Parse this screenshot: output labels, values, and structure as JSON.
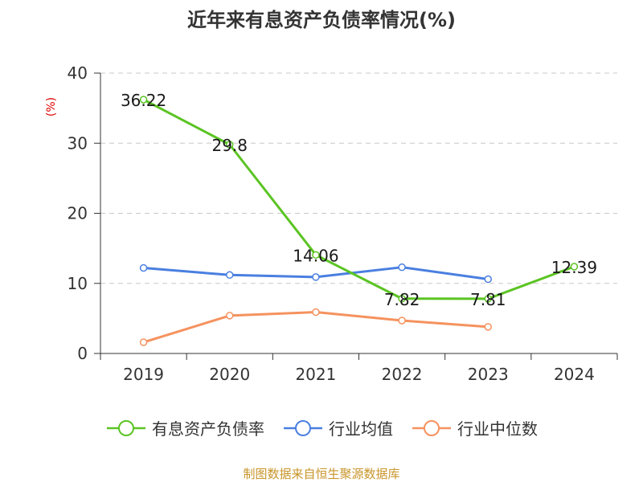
{
  "title": "近年来有息资产负债率情况(%)",
  "unit_label": "(%)",
  "source": "制图数据来自恒生聚源数据库",
  "chart_data": {
    "type": "line",
    "title": "近年来有息资产负债率情况(%)",
    "ylabel": "(%)",
    "xlabel": "",
    "categories": [
      "2019",
      "2020",
      "2021",
      "2022",
      "2023",
      "2024"
    ],
    "ylim": [
      0,
      40
    ],
    "yticks": [
      0,
      10,
      20,
      30,
      40
    ],
    "grid": true,
    "legend_position": "bottom",
    "series": [
      {
        "name": "有息资产负债率",
        "color": "#5bc423",
        "values": [
          36.22,
          29.8,
          14.06,
          7.82,
          7.81,
          12.39
        ],
        "labels": [
          "36.22",
          "29.8",
          "14.06",
          "7.82",
          "7.81",
          "12.39"
        ]
      },
      {
        "name": "行业均值",
        "color": "#4a7fe0",
        "values": [
          12.2,
          11.2,
          10.9,
          12.3,
          10.6,
          null
        ]
      },
      {
        "name": "行业中位数",
        "color": "#f5925e",
        "values": [
          1.6,
          5.4,
          5.9,
          4.7,
          3.8,
          null
        ]
      }
    ]
  }
}
